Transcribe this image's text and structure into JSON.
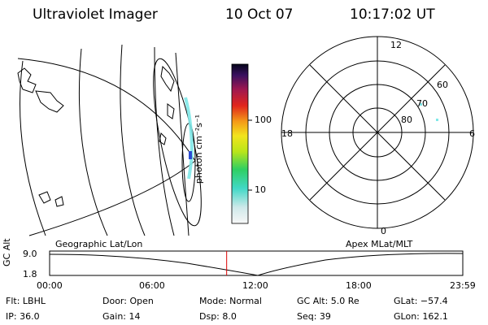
{
  "header": {
    "title": "Ultraviolet Imager",
    "date": "10 Oct 07",
    "time": "10:17:02 UT"
  },
  "colorbar": {
    "unit_label": "photon cm⁻²s⁻¹",
    "ticks": [
      "100",
      "10"
    ]
  },
  "polar": {
    "mlt_labels": [
      "12",
      "18",
      "6",
      "0"
    ],
    "lat_labels": [
      "60",
      "70",
      "80"
    ]
  },
  "timeline": {
    "left_title": "Geographic Lat/Lon",
    "right_title": "Apex MLat/MLT",
    "axis_label": "GC Alt",
    "y_ticks": [
      "9.0",
      "1.8"
    ],
    "x_ticks": [
      "00:00",
      "06:00",
      "12:00",
      "18:00",
      "23:59"
    ],
    "current_time_fraction": 0.4285
  },
  "info": {
    "flt": "Flt: LBHL",
    "door": "Door: Open",
    "mode": "Mode: Normal",
    "gcalt": "GC Alt: 5.0 Re",
    "glat": "GLat: −57.4",
    "ip": "IP: 36.0",
    "gain": "Gain: 14",
    "dsp": "Dsp:     8.0",
    "seq": "Seq: 39",
    "glon": "GLon: 162.1"
  },
  "colors": {
    "marker": "#dd0000",
    "aurora": "#7fe8e8"
  }
}
